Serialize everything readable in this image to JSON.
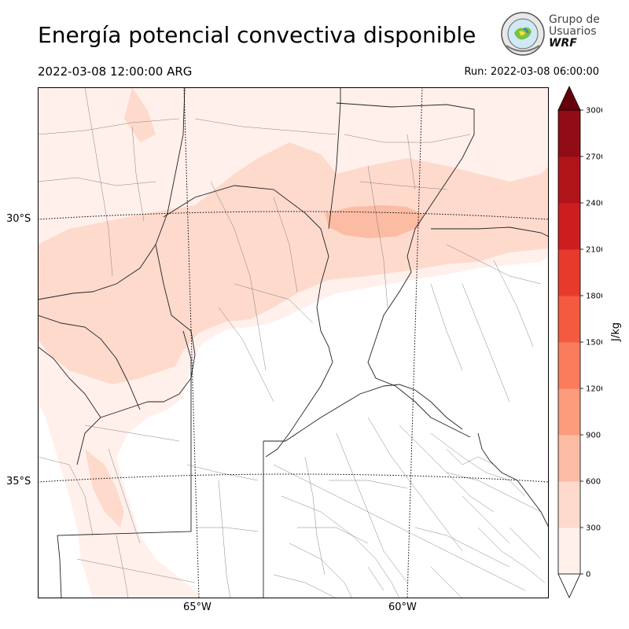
{
  "header": {
    "title": "Energía potencial convectiva disponible",
    "valid_time": "2022-03-08 12:00:00 ARG",
    "run_time": "Run: 2022-03-08 06:00:00"
  },
  "logo": {
    "line1": "Grupo de",
    "line2": "Usuarios",
    "line3": "WRF"
  },
  "map": {
    "lat_labels": [
      "30°S",
      "35°S"
    ],
    "lon_labels": [
      "65°W",
      "60°W"
    ]
  },
  "colorbar": {
    "unit": "J/kg",
    "ticks": [
      "0",
      "300",
      "600",
      "900",
      "1200",
      "1500",
      "1800",
      "2100",
      "2400",
      "2700",
      "3000"
    ],
    "colors": [
      "#fff0eb",
      "#fedacd",
      "#fcbca4",
      "#fc9c7d",
      "#fb7c5c",
      "#f45a3f",
      "#e73a2d",
      "#cd1e1f",
      "#b11419",
      "#910c14",
      "#6b0510"
    ],
    "under_color": "#ffffff",
    "over_color": "#67000d"
  }
}
